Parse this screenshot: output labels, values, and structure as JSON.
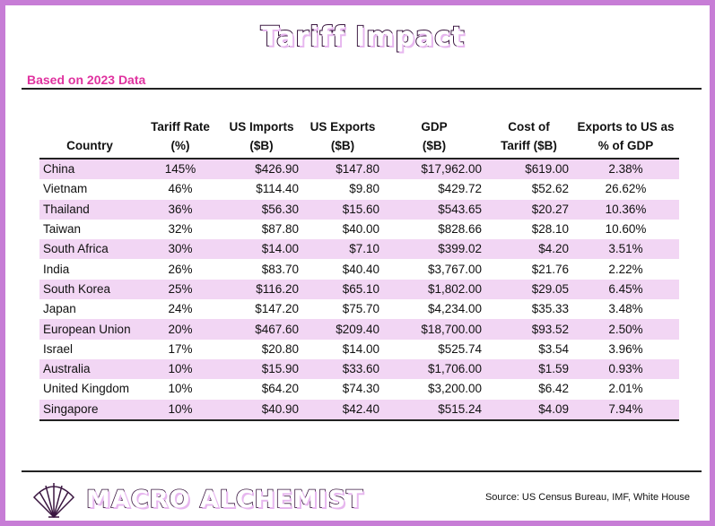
{
  "title": "Tariff Impact",
  "subtitle": "Based on 2023 Data",
  "columns": [
    [
      "",
      "Country"
    ],
    [
      "Tariff Rate",
      "(%)"
    ],
    [
      "US Imports",
      "($B)"
    ],
    [
      "US Exports",
      "($B)"
    ],
    [
      "GDP",
      "($B)"
    ],
    [
      "Cost of",
      "Tariff ($B)"
    ],
    [
      "Exports to US as",
      "% of GDP"
    ]
  ],
  "rows": [
    [
      "China",
      "145%",
      "$426.90",
      "$147.80",
      "$17,962.00",
      "$619.00",
      "2.38%"
    ],
    [
      "Vietnam",
      "46%",
      "$114.40",
      "$9.80",
      "$429.72",
      "$52.62",
      "26.62%"
    ],
    [
      "Thailand",
      "36%",
      "$56.30",
      "$15.60",
      "$543.65",
      "$20.27",
      "10.36%"
    ],
    [
      "Taiwan",
      "32%",
      "$87.80",
      "$40.00",
      "$828.66",
      "$28.10",
      "10.60%"
    ],
    [
      "South Africa",
      "30%",
      "$14.00",
      "$7.10",
      "$399.02",
      "$4.20",
      "3.51%"
    ],
    [
      "India",
      "26%",
      "$83.70",
      "$40.40",
      "$3,767.00",
      "$21.76",
      "2.22%"
    ],
    [
      "South Korea",
      "25%",
      "$116.20",
      "$65.10",
      "$1,802.00",
      "$29.05",
      "6.45%"
    ],
    [
      "Japan",
      "24%",
      "$147.20",
      "$75.70",
      "$4,234.00",
      "$35.33",
      "3.48%"
    ],
    [
      "European Union",
      "20%",
      "$467.60",
      "$209.40",
      "$18,700.00",
      "$93.52",
      "2.50%"
    ],
    [
      "Israel",
      "17%",
      "$20.80",
      "$14.00",
      "$525.74",
      "$3.54",
      "3.96%"
    ],
    [
      "Australia",
      "10%",
      "$15.90",
      "$33.60",
      "$1,706.00",
      "$1.59",
      "0.93%"
    ],
    [
      "United Kingdom",
      "10%",
      "$64.20",
      "$74.30",
      "$3,200.00",
      "$6.42",
      "2.01%"
    ],
    [
      "Singapore",
      "10%",
      "$40.90",
      "$42.40",
      "$515.24",
      "$4.09",
      "7.94%"
    ]
  ],
  "colors": {
    "frame": "#c77dd6",
    "subtitle": "#e0329f",
    "row_shade": "#f2d6f4",
    "title_outline": "#3a1640"
  },
  "brand": {
    "name": "MACRO ALCHEMIST",
    "logo_icon": "shell-icon"
  },
  "source": "Source: US Census Bureau, IMF, White House"
}
